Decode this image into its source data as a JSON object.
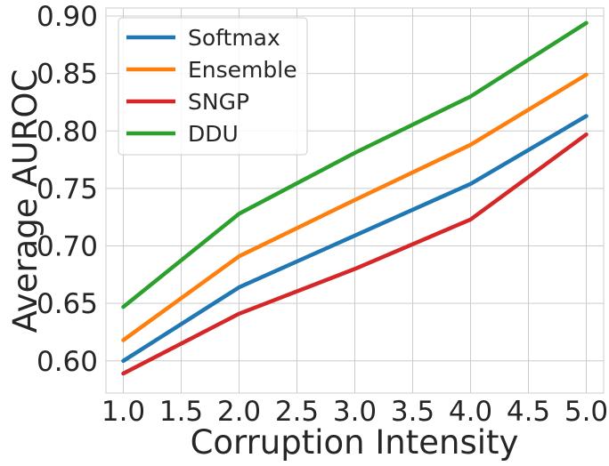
{
  "chart_data": {
    "type": "line",
    "title": "",
    "xlabel": "Corruption Intensity",
    "ylabel": "Average AUROC",
    "x": [
      1,
      2,
      3,
      4,
      5
    ],
    "xlim": [
      0.85,
      5.15
    ],
    "ylim": [
      0.572,
      0.907
    ],
    "xticks": [
      1.0,
      1.5,
      2.0,
      2.5,
      3.0,
      3.5,
      4.0,
      4.5,
      5.0
    ],
    "xtick_labels": [
      "1.0",
      "1.5",
      "2.0",
      "2.5",
      "3.0",
      "3.5",
      "4.0",
      "4.5",
      "5.0"
    ],
    "yticks": [
      0.6,
      0.65,
      0.7,
      0.75,
      0.8,
      0.85,
      0.9
    ],
    "ytick_labels": [
      "0.60",
      "0.65",
      "0.70",
      "0.75",
      "0.80",
      "0.85",
      "0.90"
    ],
    "grid": true,
    "legend_position": "top-left",
    "series": [
      {
        "name": "Softmax",
        "color": "#1f77b4",
        "values": [
          0.6,
          0.664,
          0.709,
          0.754,
          0.813
        ]
      },
      {
        "name": "Ensemble",
        "color": "#ff7f0e",
        "values": [
          0.618,
          0.691,
          0.74,
          0.788,
          0.849
        ]
      },
      {
        "name": "SNGP",
        "color": "#d62728",
        "values": [
          0.589,
          0.641,
          0.68,
          0.723,
          0.797
        ]
      },
      {
        "name": "DDU",
        "color": "#2ca02c",
        "values": [
          0.647,
          0.728,
          0.781,
          0.83,
          0.894
        ]
      }
    ]
  }
}
